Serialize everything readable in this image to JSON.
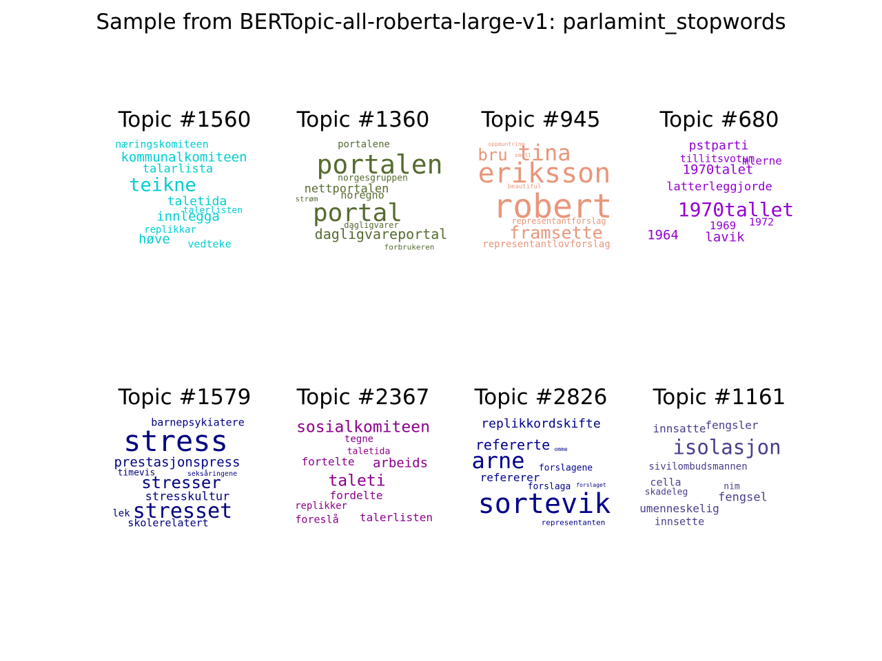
{
  "title": "Sample from BERTopic-all-roberta-large-v1: parlamint_stopwords",
  "topics": [
    {
      "label": "Topic #1560",
      "color": "#00ced1",
      "words": [
        "næringskomiteen",
        "kommunalkomiteen",
        "talarlista",
        "teikne",
        "taletida",
        "talerlisten",
        "innlegga",
        "replikkar",
        "høve",
        "vedteke"
      ]
    },
    {
      "label": "Topic #1360",
      "color": "#556b2f",
      "words": [
        "portalene",
        "portalen",
        "norgesgruppen",
        "nettportalen",
        "noregno",
        "strøm",
        "portal",
        "dagligvarer",
        "dagligvareportal",
        "forbrukeren"
      ]
    },
    {
      "label": "Topic #945",
      "color": "#e9967a",
      "words": [
        "oppmuntring",
        "bru",
        "small",
        "tina",
        "eriksson",
        "beautiful",
        "robert",
        "representantforslag",
        "framsette",
        "representantlovforslag"
      ]
    },
    {
      "label": "Topic #680",
      "color": "#9400d3",
      "words": [
        "pstparti",
        "tillitsvotum",
        "mlerne",
        "1970talet",
        "latterleggjorde",
        "1970tallet",
        "1969",
        "1972",
        "1964",
        "lavik"
      ]
    },
    {
      "label": "Topic #1579",
      "color": "#000080",
      "words": [
        "barnepsykiatere",
        "stress",
        "prestasjonspress",
        "timevis",
        "seksåringene",
        "stresser",
        "stresskultur",
        "lek",
        "stresset",
        "skolerelatert"
      ]
    },
    {
      "label": "Topic #2367",
      "color": "#8b008b",
      "words": [
        "sosialkomiteen",
        "tegne",
        "taletida",
        "fortelte",
        "arbeids",
        "taleti",
        "fordelte",
        "replikker",
        "foreslå",
        "talerlisten"
      ]
    },
    {
      "label": "Topic #2826",
      "color": "#00008b",
      "words": [
        "replikkordskifte",
        "refererte",
        "omme",
        "arne",
        "forslagene",
        "refererer",
        "forslaga",
        "forslaget",
        "sortevik",
        "representanten"
      ]
    },
    {
      "label": "Topic #1161",
      "color": "#483d8b",
      "words": [
        "innsatte",
        "fengsler",
        "isolasjon",
        "sivilombudsmannen",
        "cella",
        "skadeleg",
        "nim",
        "fengsel",
        "umenneskelig",
        "innsette"
      ]
    }
  ]
}
